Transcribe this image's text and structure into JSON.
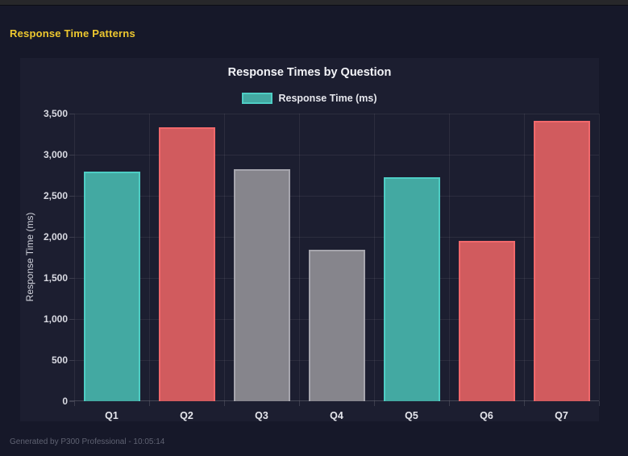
{
  "window": {
    "top_bar_color": "#27272a"
  },
  "page": {
    "title": "Response Time Patterns",
    "title_color": "#eec82f",
    "background": "#161829",
    "footer": "Generated by P300 Professional - 10:05:14"
  },
  "panel": {
    "background": "#1c1e30"
  },
  "chart_data": {
    "type": "bar",
    "title": "Response Times by Question",
    "xlabel": "",
    "ylabel": "Response Time (ms)",
    "categories": [
      "Q1",
      "Q2",
      "Q3",
      "Q4",
      "Q5",
      "Q6",
      "Q7"
    ],
    "series": [
      {
        "name": "Response Time (ms)",
        "values": [
          2790,
          3330,
          2820,
          1845,
          2730,
          1950,
          3410
        ]
      }
    ],
    "bar_color_keys": [
      "teal",
      "red",
      "gray",
      "gray",
      "teal",
      "red",
      "red"
    ],
    "colors": {
      "teal": {
        "fill": "#43a9a2",
        "border": "#4ecdc4"
      },
      "red": {
        "fill": "#d15b5e",
        "border": "#f1686b"
      },
      "gray": {
        "fill": "#86858c",
        "border": "#a6a5ad"
      }
    },
    "ylim": [
      0,
      3500
    ],
    "ytick_step": 500,
    "grid": true,
    "legend": {
      "position": "top",
      "items": [
        {
          "label": "Response Time (ms)",
          "swatch_fill": "#43a9a2",
          "swatch_border": "#4ecdc4"
        }
      ]
    }
  }
}
